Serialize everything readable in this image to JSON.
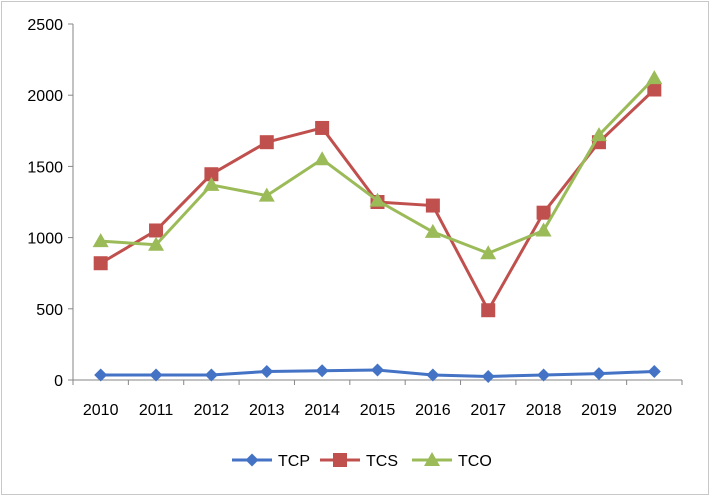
{
  "chart_data": {
    "type": "line",
    "title": "",
    "xlabel": "",
    "ylabel": "",
    "categories": [
      "2010",
      "2011",
      "2012",
      "2013",
      "2014",
      "2015",
      "2016",
      "2017",
      "2018",
      "2019",
      "2020"
    ],
    "ylim": [
      0,
      2500
    ],
    "yticks": [
      0,
      500,
      1000,
      1500,
      2000,
      2500
    ],
    "grid": false,
    "legend_position": "bottom",
    "series": [
      {
        "name": "TCP",
        "color": "#4472c4",
        "marker": "diamond",
        "values": [
          35,
          35,
          35,
          60,
          65,
          70,
          35,
          25,
          35,
          45,
          60
        ]
      },
      {
        "name": "TCS",
        "color": "#c0504d",
        "marker": "square",
        "values": [
          820,
          1050,
          1445,
          1670,
          1770,
          1250,
          1225,
          490,
          1175,
          1670,
          2040
        ]
      },
      {
        "name": "TCO",
        "color": "#9bbb59",
        "marker": "triangle",
        "values": [
          975,
          950,
          1370,
          1295,
          1550,
          1260,
          1040,
          890,
          1050,
          1720,
          2120
        ]
      }
    ]
  }
}
